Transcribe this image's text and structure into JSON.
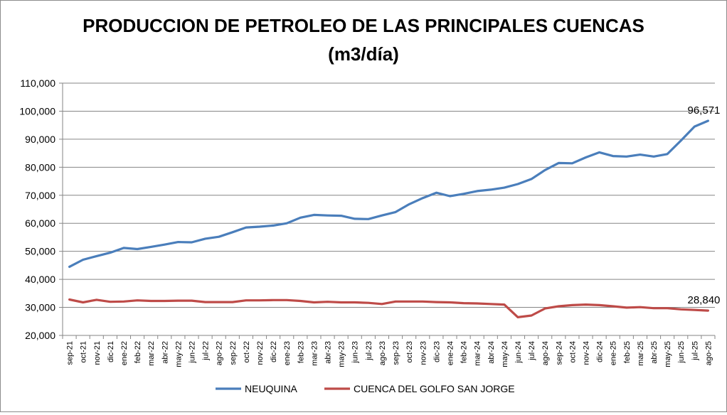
{
  "chart_data": {
    "type": "line",
    "title": "PRODUCCION DE PETROLEO DE LAS PRINCIPALES CUENCAS",
    "subtitle": "(m3/día)",
    "xlabel": "",
    "ylabel": "",
    "ylim": [
      20000,
      110000
    ],
    "yticks": [
      20000,
      30000,
      40000,
      50000,
      60000,
      70000,
      80000,
      90000,
      100000,
      110000
    ],
    "ytick_labels": [
      "20,000",
      "30,000",
      "40,000",
      "50,000",
      "60,000",
      "70,000",
      "80,000",
      "90,000",
      "100,000",
      "110,000"
    ],
    "grid": true,
    "legend": "bottom",
    "categories": [
      "sep-21",
      "oct-21",
      "nov-21",
      "dic-21",
      "ene-22",
      "feb-22",
      "mar-22",
      "abr-22",
      "may-22",
      "jun-22",
      "jul-22",
      "ago-22",
      "sep-22",
      "oct-22",
      "nov-22",
      "dic-22",
      "ene-23",
      "feb-23",
      "mar-23",
      "abr-23",
      "may-23",
      "jun-23",
      "jul-23",
      "ago-23",
      "sep-23",
      "oct-23",
      "nov-23",
      "dic-23",
      "ene-24",
      "feb-24",
      "mar-24",
      "abr-24",
      "may-24",
      "jun-24",
      "jul-24",
      "ago-24",
      "sep-24",
      "oct-24",
      "nov-24",
      "dic-24",
      "ene-25",
      "feb-25",
      "mar-25",
      "abr-25",
      "may-25",
      "jun-25",
      "jul-25",
      "ago-25"
    ],
    "series": [
      {
        "name": "NEUQUINA",
        "color": "#4a7ebb",
        "values": [
          44500,
          47000,
          48300,
          49500,
          51200,
          50800,
          51600,
          52400,
          53300,
          53200,
          54500,
          55200,
          56800,
          58500,
          58800,
          59200,
          60000,
          62000,
          63000,
          62800,
          62700,
          61600,
          61500,
          62800,
          64000,
          66800,
          69000,
          70900,
          69700,
          70500,
          71500,
          72000,
          72700,
          74000,
          75800,
          79000,
          81500,
          81400,
          83500,
          85300,
          84000,
          83800,
          84500,
          83800,
          84700,
          89500,
          94500,
          96571
        ],
        "end_label": "96,571"
      },
      {
        "name": "CUENCA DEL GOLFO SAN JORGE",
        "color": "#be4b48",
        "values": [
          32800,
          31800,
          32700,
          32000,
          32100,
          32500,
          32300,
          32300,
          32400,
          32400,
          31900,
          31900,
          31900,
          32500,
          32500,
          32600,
          32600,
          32300,
          31800,
          32000,
          31800,
          31800,
          31600,
          31200,
          32100,
          32100,
          32100,
          31900,
          31800,
          31500,
          31400,
          31200,
          31000,
          26500,
          27100,
          29600,
          30400,
          30800,
          31000,
          30800,
          30400,
          29900,
          30100,
          29700,
          29700,
          29300,
          29100,
          28840
        ],
        "end_label": "28,840"
      }
    ]
  }
}
